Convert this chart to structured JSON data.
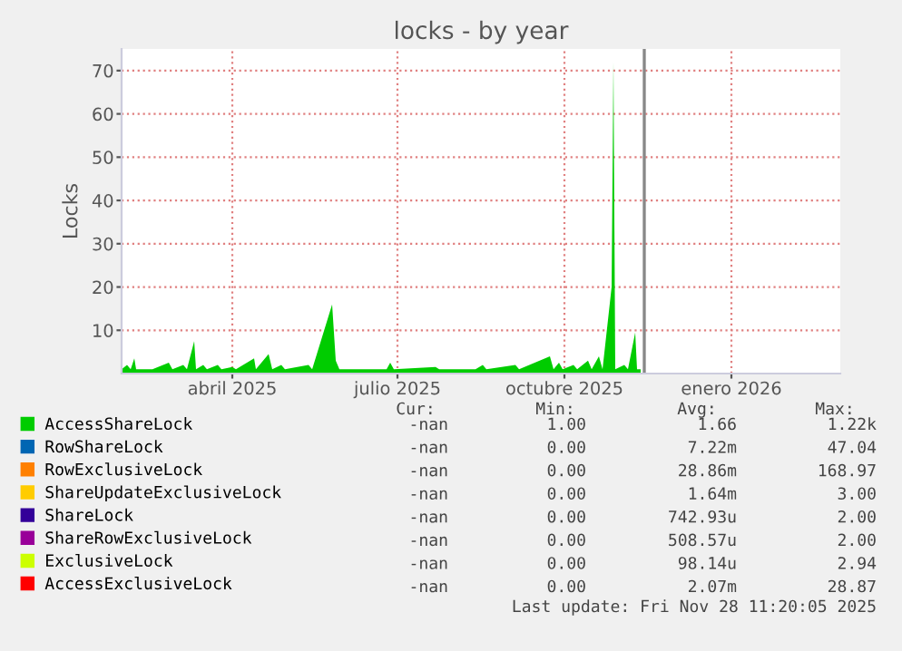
{
  "chart_data": {
    "type": "area",
    "title": "locks - by year",
    "ylabel": "Locks",
    "xlim": [
      "2025-02-13",
      "2026-03-16"
    ],
    "ylim": [
      0,
      75
    ],
    "yticks": [
      10,
      20,
      30,
      40,
      50,
      60,
      70
    ],
    "xticks": [
      {
        "value": "2025-04-15",
        "label": "abril 2025"
      },
      {
        "value": "2025-07-15",
        "label": "julio 2025"
      },
      {
        "value": "2025-10-15",
        "label": "octubre 2025"
      },
      {
        "value": "2026-01-15",
        "label": "enero 2026"
      }
    ],
    "grid": true,
    "legend": "bottom",
    "ref_lines": [
      {
        "axis": "x",
        "value": "2025-11-28",
        "color": "#888888"
      }
    ],
    "series": [
      {
        "name": "AccessShareLock",
        "color": "#00cc00",
        "x": [
          "2025-02-13",
          "2025-02-16",
          "2025-02-18",
          "2025-02-20",
          "2025-02-21",
          "2025-03-02",
          "2025-03-11",
          "2025-03-13",
          "2025-03-19",
          "2025-03-21",
          "2025-03-25",
          "2025-03-26",
          "2025-03-30",
          "2025-04-01",
          "2025-04-07",
          "2025-04-09",
          "2025-04-15",
          "2025-04-17",
          "2025-04-27",
          "2025-04-28",
          "2025-05-05",
          "2025-05-07",
          "2025-05-12",
          "2025-05-14",
          "2025-05-27",
          "2025-05-29",
          "2025-06-09",
          "2025-06-11",
          "2025-06-13",
          "2025-07-09",
          "2025-07-11",
          "2025-07-13",
          "2025-08-05",
          "2025-08-07",
          "2025-08-27",
          "2025-08-31",
          "2025-09-02",
          "2025-09-18",
          "2025-09-20",
          "2025-10-07",
          "2025-10-09",
          "2025-10-12",
          "2025-10-14",
          "2025-10-20",
          "2025-10-22",
          "2025-10-28",
          "2025-10-30",
          "2025-11-03",
          "2025-11-05",
          "2025-11-10",
          "2025-11-11",
          "2025-11-12",
          "2025-11-17",
          "2025-11-19",
          "2025-11-23",
          "2025-11-24",
          "2025-11-26"
        ],
        "values": [
          1,
          2,
          1,
          3.5,
          1,
          1,
          2.5,
          1,
          2,
          1,
          7.5,
          1,
          2,
          1,
          2,
          1,
          1.5,
          1,
          3.5,
          1,
          4.5,
          1,
          2,
          1,
          2,
          1,
          16,
          3,
          1,
          1,
          2.5,
          1,
          1.5,
          1,
          1,
          2,
          1,
          2,
          1,
          4,
          1,
          2.5,
          1,
          2,
          1,
          3,
          1,
          4,
          1,
          20,
          72,
          1,
          2,
          1,
          9.5,
          1,
          1
        ]
      },
      {
        "name": "RowShareLock",
        "color": "#0066b3"
      },
      {
        "name": "RowExclusiveLock",
        "color": "#ff8000"
      },
      {
        "name": "ShareUpdateExclusiveLock",
        "color": "#ffcc00"
      },
      {
        "name": "ShareLock",
        "color": "#330099"
      },
      {
        "name": "ShareRowExclusiveLock",
        "color": "#990099"
      },
      {
        "name": "ExclusiveLock",
        "color": "#ccff00"
      },
      {
        "name": "AccessExclusiveLock",
        "color": "#ff0000"
      }
    ],
    "annotations": [
      "Cur:",
      "Min:",
      "Avg:",
      "Max:",
      "-nan",
      "1.00",
      "1.66",
      "1.22k",
      "-nan",
      "0.00",
      "7.22m",
      "47.04",
      "-nan",
      "0.00",
      "28.86m",
      "168.97",
      "-nan",
      "0.00",
      "1.64m",
      "3.00",
      "-nan",
      "0.00",
      "742.93u",
      "2.00",
      "-nan",
      "0.00",
      "508.57u",
      "2.00",
      "-nan",
      "0.00",
      "98.14u",
      "2.94",
      "-nan",
      "0.00",
      "2.07m",
      "28.87",
      "Last update: Fri Nov 28 11:20:05 2025"
    ]
  }
}
